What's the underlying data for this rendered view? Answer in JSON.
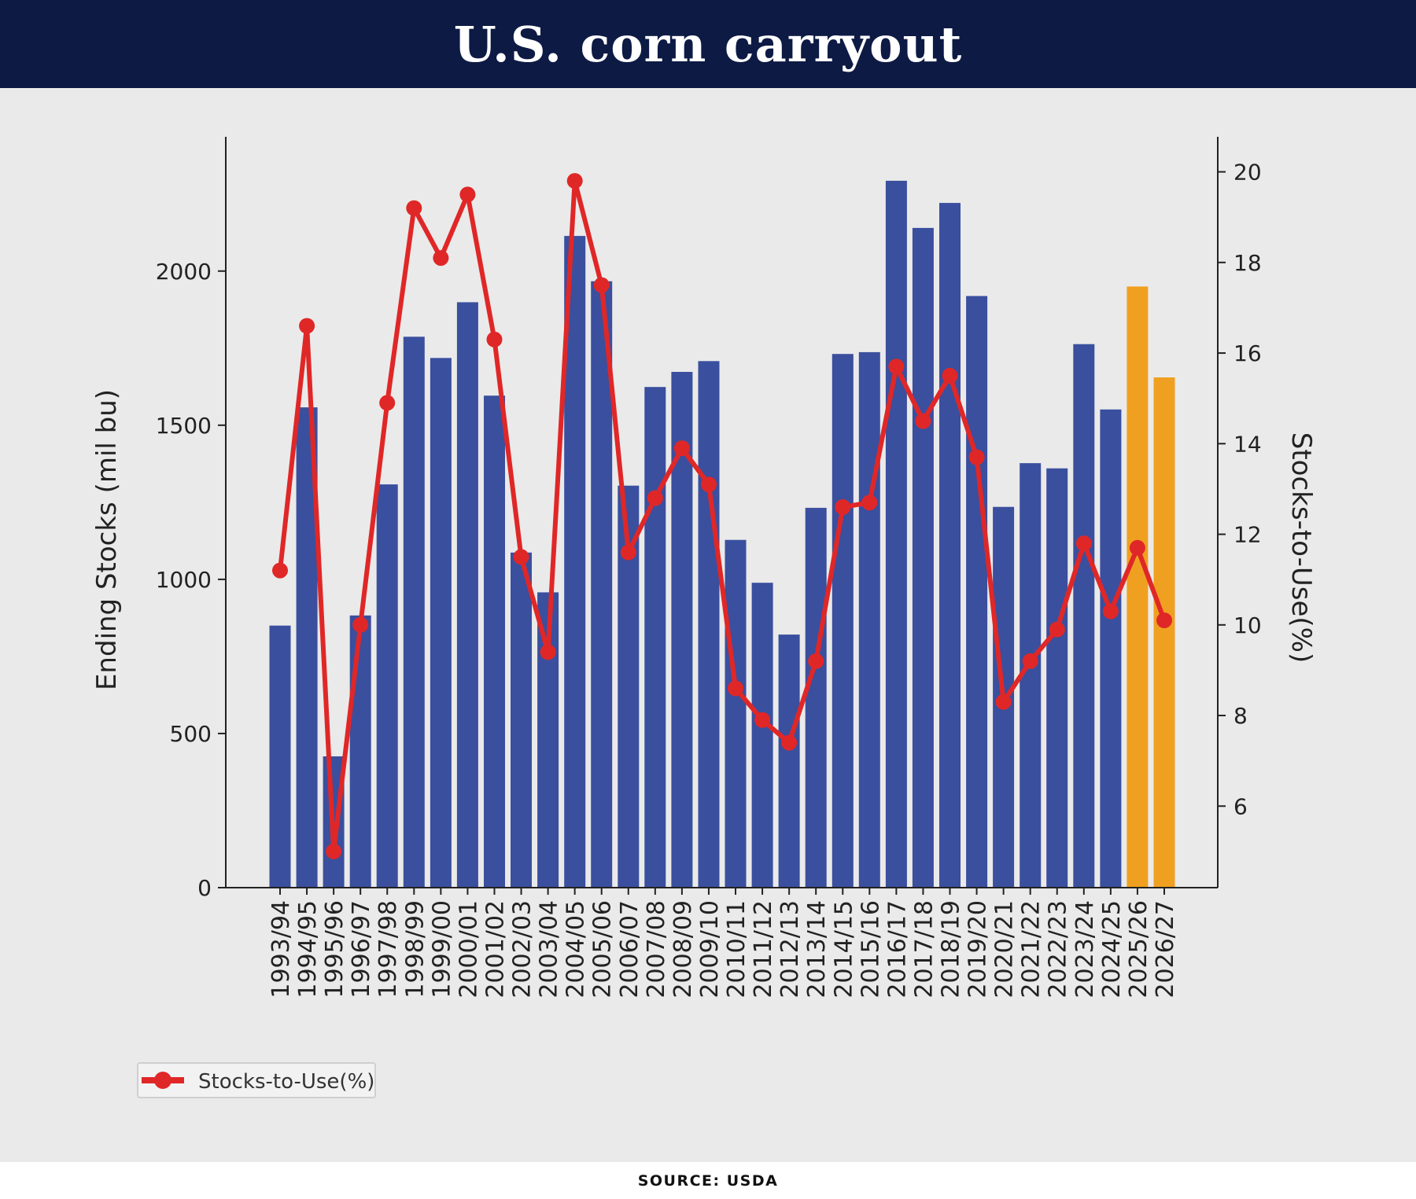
{
  "header": {
    "title": "U.S. corn carryout"
  },
  "footer": {
    "source": "SOURCE: USDA"
  },
  "colors": {
    "banner": "#0d1a44",
    "bar_actual": "#3a4f9e",
    "bar_projected": "#f0a020",
    "line": "#e02727",
    "panel": "#eaeaea"
  },
  "chart_data": {
    "type": "bar",
    "title": "",
    "categories": [
      "1993/94",
      "1994/95",
      "1995/96",
      "1996/97",
      "1997/98",
      "1998/99",
      "1999/00",
      "2000/01",
      "2001/02",
      "2002/03",
      "2003/04",
      "2004/05",
      "2005/06",
      "2006/07",
      "2007/08",
      "2008/09",
      "2009/10",
      "2010/11",
      "2011/12",
      "2012/13",
      "2013/14",
      "2014/15",
      "2015/16",
      "2016/17",
      "2017/18",
      "2018/19",
      "2019/20",
      "2020/21",
      "2021/22",
      "2022/23",
      "2023/24",
      "2024/25",
      "2025/26",
      "2026/27"
    ],
    "xlabel": "",
    "ylabel": "Ending Stocks (mil bu)",
    "y2label": "Stocks-to-Use(%)",
    "ylim": [
      0,
      2410
    ],
    "y2lim": [
      4.2,
      20.6
    ],
    "yticks": [
      0,
      500,
      1000,
      1500,
      2000
    ],
    "y2ticks": [
      6,
      8,
      10,
      12,
      14,
      16,
      18,
      20
    ],
    "series": [
      {
        "name": "",
        "kind": "bar",
        "axis": "left",
        "values": [
          850,
          1558,
          426,
          883,
          1308,
          1787,
          1718,
          1899,
          1596,
          1087,
          958,
          2114,
          1967,
          1304,
          1624,
          1673,
          1708,
          1128,
          989,
          821,
          1232,
          1731,
          1737,
          2293,
          2140,
          2221,
          1919,
          1235,
          1377,
          1360,
          1763,
          1551,
          1950,
          1655
        ],
        "colors": [
          "#3a4f9e",
          "#3a4f9e",
          "#3a4f9e",
          "#3a4f9e",
          "#3a4f9e",
          "#3a4f9e",
          "#3a4f9e",
          "#3a4f9e",
          "#3a4f9e",
          "#3a4f9e",
          "#3a4f9e",
          "#3a4f9e",
          "#3a4f9e",
          "#3a4f9e",
          "#3a4f9e",
          "#3a4f9e",
          "#3a4f9e",
          "#3a4f9e",
          "#3a4f9e",
          "#3a4f9e",
          "#3a4f9e",
          "#3a4f9e",
          "#3a4f9e",
          "#3a4f9e",
          "#3a4f9e",
          "#3a4f9e",
          "#3a4f9e",
          "#3a4f9e",
          "#3a4f9e",
          "#3a4f9e",
          "#3a4f9e",
          "#3a4f9e",
          "#f0a020",
          "#f0a020"
        ]
      },
      {
        "name": "Stocks-to-Use(%)",
        "kind": "line",
        "axis": "right",
        "values": [
          11.2,
          16.6,
          5.0,
          10.0,
          14.9,
          19.2,
          18.1,
          19.5,
          16.3,
          11.5,
          9.4,
          19.8,
          17.5,
          11.6,
          12.8,
          13.9,
          13.1,
          8.6,
          7.9,
          7.4,
          9.2,
          12.6,
          12.7,
          15.7,
          14.5,
          15.5,
          13.7,
          8.3,
          9.2,
          9.9,
          11.8,
          10.3,
          11.7,
          10.1
        ]
      }
    ],
    "legend": {
      "position": "bottom-left",
      "label": "Stocks-to-Use(%)"
    },
    "grid": false
  }
}
